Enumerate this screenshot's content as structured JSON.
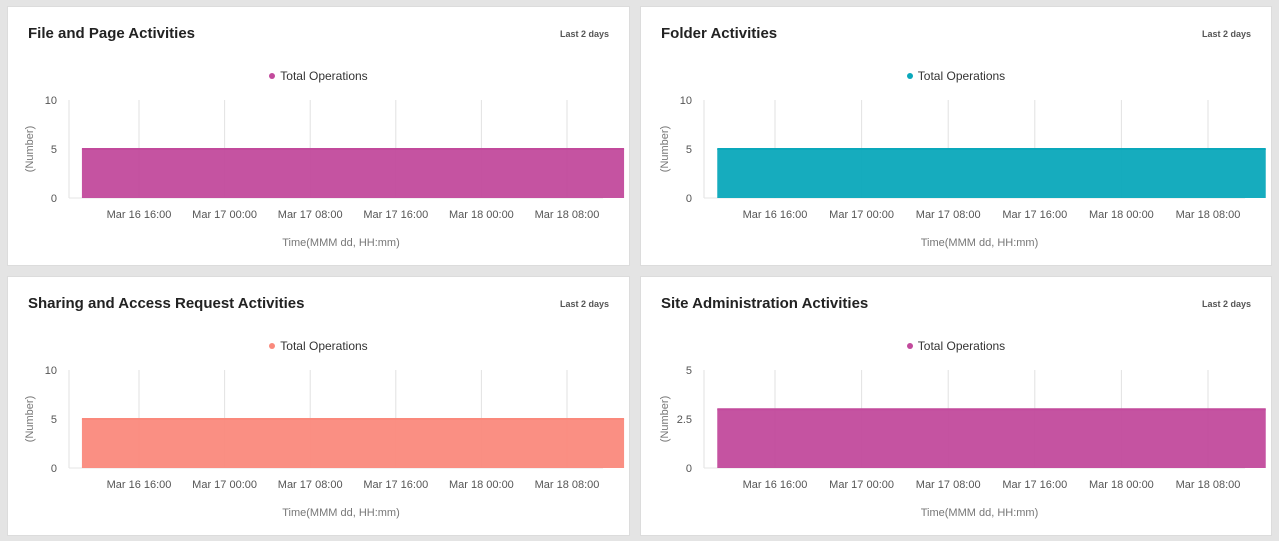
{
  "chart_data": [
    {
      "type": "area",
      "title": "File and Page Activities",
      "range_label": "Last 2 days",
      "legend": "Total Operations",
      "color": "#c24a9c",
      "ylabel": "(Number)",
      "xlabel": "Time(MMM dd, HH:mm)",
      "ylim": [
        0,
        10
      ],
      "yticks": [
        "0",
        "5",
        "10"
      ],
      "xticks": [
        "Mar 16 16:00",
        "Mar 17 00:00",
        "Mar 17 08:00",
        "Mar 17 16:00",
        "Mar 18 00:00",
        "Mar 18 08:00"
      ],
      "x": [
        "Mar 16 10:40",
        "Mar 18 13:20"
      ],
      "values": [
        5,
        5
      ],
      "series": [
        {
          "name": "Total Operations",
          "values": [
            5,
            5
          ]
        }
      ]
    },
    {
      "type": "area",
      "title": "Folder Activities",
      "range_label": "Last 2 days",
      "legend": "Total Operations",
      "color": "#0aa8bb",
      "ylabel": "(Number)",
      "xlabel": "Time(MMM dd, HH:mm)",
      "ylim": [
        0,
        10
      ],
      "yticks": [
        "0",
        "5",
        "10"
      ],
      "xticks": [
        "Mar 16 16:00",
        "Mar 17 00:00",
        "Mar 17 08:00",
        "Mar 17 16:00",
        "Mar 18 00:00",
        "Mar 18 08:00"
      ],
      "x": [
        "Mar 16 10:40",
        "Mar 18 13:20"
      ],
      "values": [
        5,
        5
      ],
      "series": [
        {
          "name": "Total Operations",
          "values": [
            5,
            5
          ]
        }
      ]
    },
    {
      "type": "area",
      "title": "Sharing and Access Request Activities",
      "range_label": "Last 2 days",
      "legend": "Total Operations",
      "color": "#fa897c",
      "ylabel": "(Number)",
      "xlabel": "Time(MMM dd, HH:mm)",
      "ylim": [
        0,
        10
      ],
      "yticks": [
        "0",
        "5",
        "10"
      ],
      "xticks": [
        "Mar 16 16:00",
        "Mar 17 00:00",
        "Mar 17 08:00",
        "Mar 17 16:00",
        "Mar 18 00:00",
        "Mar 18 08:00"
      ],
      "x": [
        "Mar 16 10:40",
        "Mar 18 13:20"
      ],
      "values": [
        5,
        5
      ],
      "series": [
        {
          "name": "Total Operations",
          "values": [
            5,
            5
          ]
        }
      ]
    },
    {
      "type": "area",
      "title": "Site Administration Activities",
      "range_label": "Last 2 days",
      "legend": "Total Operations",
      "color": "#c24a9c",
      "ylabel": "(Number)",
      "xlabel": "Time(MMM dd, HH:mm)",
      "ylim": [
        0,
        5
      ],
      "yticks": [
        "0",
        "2.5",
        "5"
      ],
      "xticks": [
        "Mar 16 16:00",
        "Mar 17 00:00",
        "Mar 17 08:00",
        "Mar 17 16:00",
        "Mar 18 00:00",
        "Mar 18 08:00"
      ],
      "x": [
        "Mar 16 10:40",
        "Mar 18 13:20"
      ],
      "values": [
        3,
        3
      ],
      "series": [
        {
          "name": "Total Operations",
          "values": [
            3,
            3
          ]
        }
      ]
    }
  ]
}
